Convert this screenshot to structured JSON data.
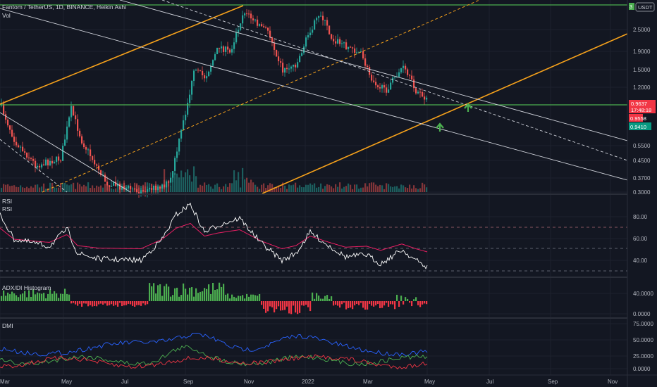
{
  "header": {
    "title": "Fantom / TetherUS, 1D, BINANCE, Heikin Ashi",
    "volume_label": "Vol",
    "currency_button": "USDT",
    "alert_marker": "3"
  },
  "price_scale": {
    "ticks": [
      "2.5000",
      "1.9000",
      "1.5000",
      "1.2000",
      "0.5500",
      "0.4500",
      "0.3700",
      "0.3000"
    ],
    "last_price": "0.9637",
    "countdown": "17:48:18",
    "price_b": "0.9558",
    "price_c": "0.9410",
    "colors": {
      "last": "#f23645",
      "green": "#089981"
    }
  },
  "rsi_panel": {
    "title1": "RSI",
    "title2": "RSI",
    "ticks": [
      "80.00",
      "60.00",
      "40.00"
    ]
  },
  "adx_panel": {
    "title": "ADX/DI Histogram",
    "ticks": [
      "40.0000",
      "0.0000"
    ]
  },
  "dmi_panel": {
    "title": "DMI",
    "ticks": [
      "75.0000",
      "50.0000",
      "25.0000",
      "0.0000"
    ]
  },
  "time_axis": {
    "labels": [
      "Mar",
      "May",
      "Jul",
      "Sep",
      "Nov",
      "2022",
      "Mar",
      "May",
      "Jul",
      "Sep",
      "Nov"
    ]
  },
  "colors": {
    "background": "#131722",
    "up": "#26a69a",
    "down": "#ef5350",
    "orange": "#f7a21b",
    "green_line": "#4caf50",
    "arrow": "#4caf50",
    "rsi_line": "#ffffff",
    "rsi_ma": "#e91e63",
    "di_plus": "#4caf50",
    "di_minus": "#f23645",
    "adx": "#2962ff"
  }
}
